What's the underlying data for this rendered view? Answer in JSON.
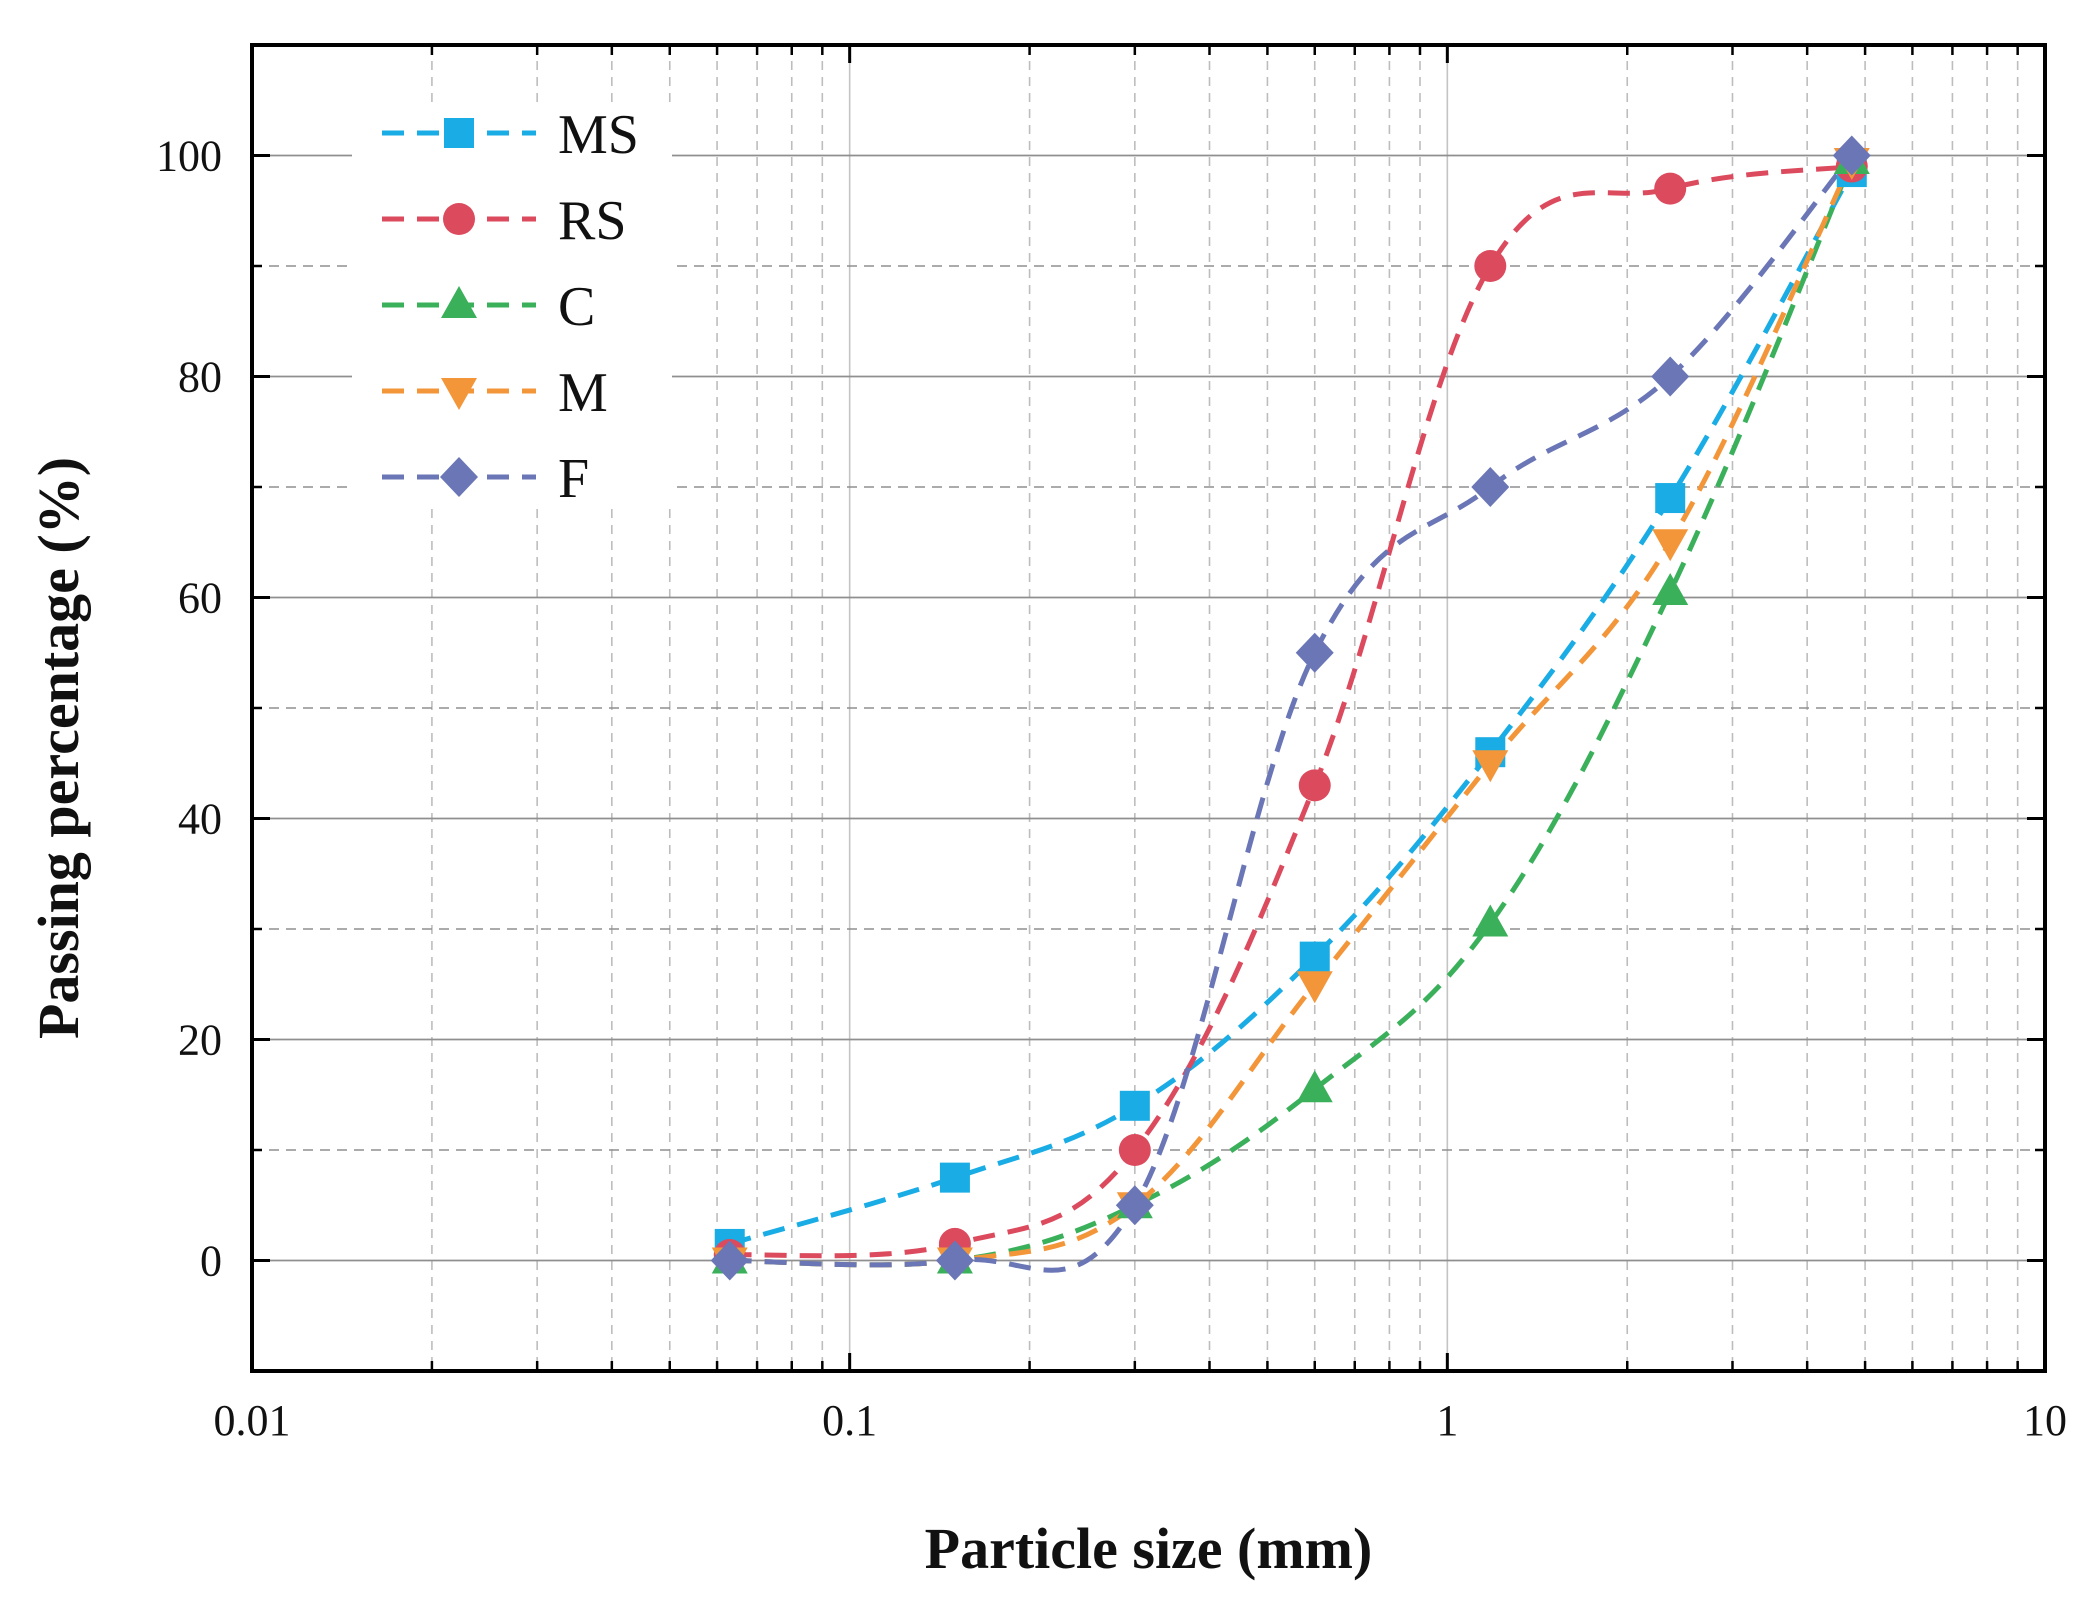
{
  "chart_data": {
    "type": "line",
    "xscale": "log",
    "xlabel": "Particle size (mm)",
    "ylabel": "Passing percentage (%)",
    "xlim": [
      0.01,
      10
    ],
    "ylim": [
      -10,
      110
    ],
    "x_ticks": [
      0.01,
      0.1,
      1,
      10
    ],
    "x_tick_labels": [
      "0.01",
      "0.1",
      "1",
      "10"
    ],
    "y_ticks": [
      0,
      20,
      40,
      60,
      80,
      100
    ],
    "y_tick_labels": [
      "0",
      "20",
      "40",
      "60",
      "80",
      "100"
    ],
    "y_minor_grid": [
      10,
      30,
      50,
      70,
      90
    ],
    "grid": true,
    "legend_position": "top-left",
    "x": [
      0.063,
      0.15,
      0.3,
      0.6,
      1.18,
      2.36,
      4.75
    ],
    "series": [
      {
        "name": "MS",
        "marker": "square",
        "color": "#1aace4",
        "values": [
          1.5,
          7.5,
          14,
          27.5,
          46,
          69,
          98.5
        ]
      },
      {
        "name": "RS",
        "marker": "circle",
        "color": "#dc4a5e",
        "values": [
          0.5,
          1.5,
          10,
          43,
          90,
          97,
          99
        ]
      },
      {
        "name": "C",
        "marker": "triangle-up",
        "color": "#3bb05b",
        "values": [
          0,
          0,
          5,
          15.5,
          30.5,
          60.5,
          99.5
        ]
      },
      {
        "name": "M",
        "marker": "triangle-down",
        "color": "#f3963a",
        "values": [
          0,
          0,
          5,
          25,
          45,
          65,
          99.5
        ]
      },
      {
        "name": "F",
        "marker": "diamond",
        "color": "#6a76b6",
        "values": [
          0,
          0,
          5,
          55,
          70,
          80,
          100
        ]
      }
    ]
  }
}
